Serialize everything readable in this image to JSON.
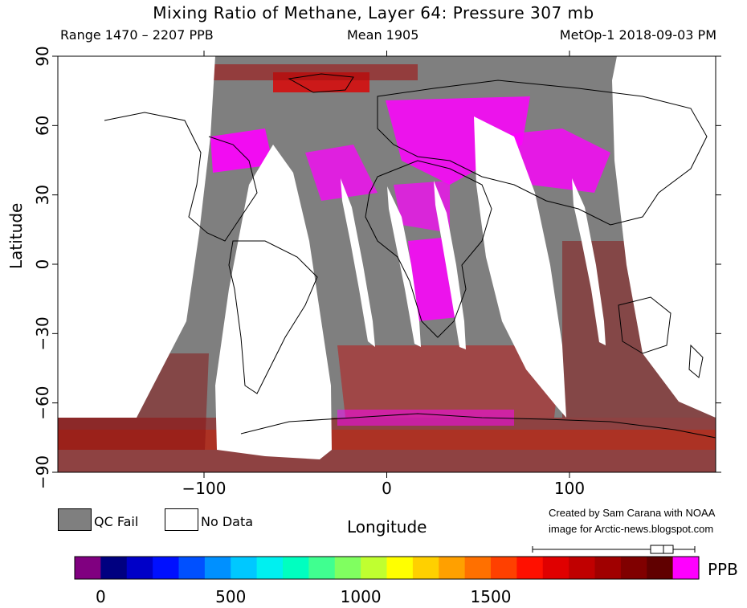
{
  "header": {
    "title": "Mixing Ratio of Methane, Layer 64: Pressure 307 mb",
    "range": "Range 1470 – 2207 PPB",
    "mean": "Mean 1905",
    "satellite": "MetOp-1 2018-09-03 PM"
  },
  "legend": {
    "qc_fail": "QC Fail",
    "no_data": "No Data"
  },
  "credit": {
    "line1": "Created by Sam Carana with NOAA",
    "line2": "image for Arctic-news.blogspot.com"
  },
  "colorbar": {
    "unit": "PPB",
    "tick_labels": [
      "0",
      "500",
      "1000",
      "1500"
    ],
    "ticks": [
      0,
      500,
      1000,
      1500
    ],
    "range": [
      -100,
      2300
    ],
    "colors": [
      "#800080",
      "#000080",
      "#0000c8",
      "#0010ff",
      "#0050ff",
      "#0090ff",
      "#00c8ff",
      "#00f0f0",
      "#00ffc0",
      "#40ff90",
      "#80ff60",
      "#c0ff30",
      "#ffff00",
      "#ffd000",
      "#ffa000",
      "#ff7000",
      "#ff4000",
      "#ff1000",
      "#e00000",
      "#c00000",
      "#a00000",
      "#800000",
      "#600000",
      "#ff00ff"
    ]
  },
  "chart_data": {
    "type": "heatmap",
    "title": "Mixing Ratio of Methane, Layer 64: Pressure 307 mb",
    "xlabel": "Longitude",
    "ylabel": "Latitude",
    "xlim": [
      -180,
      180
    ],
    "ylim": [
      -90,
      90
    ],
    "x_ticks": [
      -100,
      0,
      100
    ],
    "y_ticks": [
      90,
      60,
      30,
      0,
      -30,
      -60,
      -90
    ],
    "value_range_ppb": [
      1470,
      2207
    ],
    "mean_ppb": 1905,
    "no_data_swaths_lon_at_equator": [
      [
        -90,
        -37
      ],
      [
        -21,
        -12
      ],
      [
        4,
        13
      ],
      [
        33,
        40
      ],
      [
        56,
        98
      ],
      [
        122,
        128
      ]
    ]
  }
}
